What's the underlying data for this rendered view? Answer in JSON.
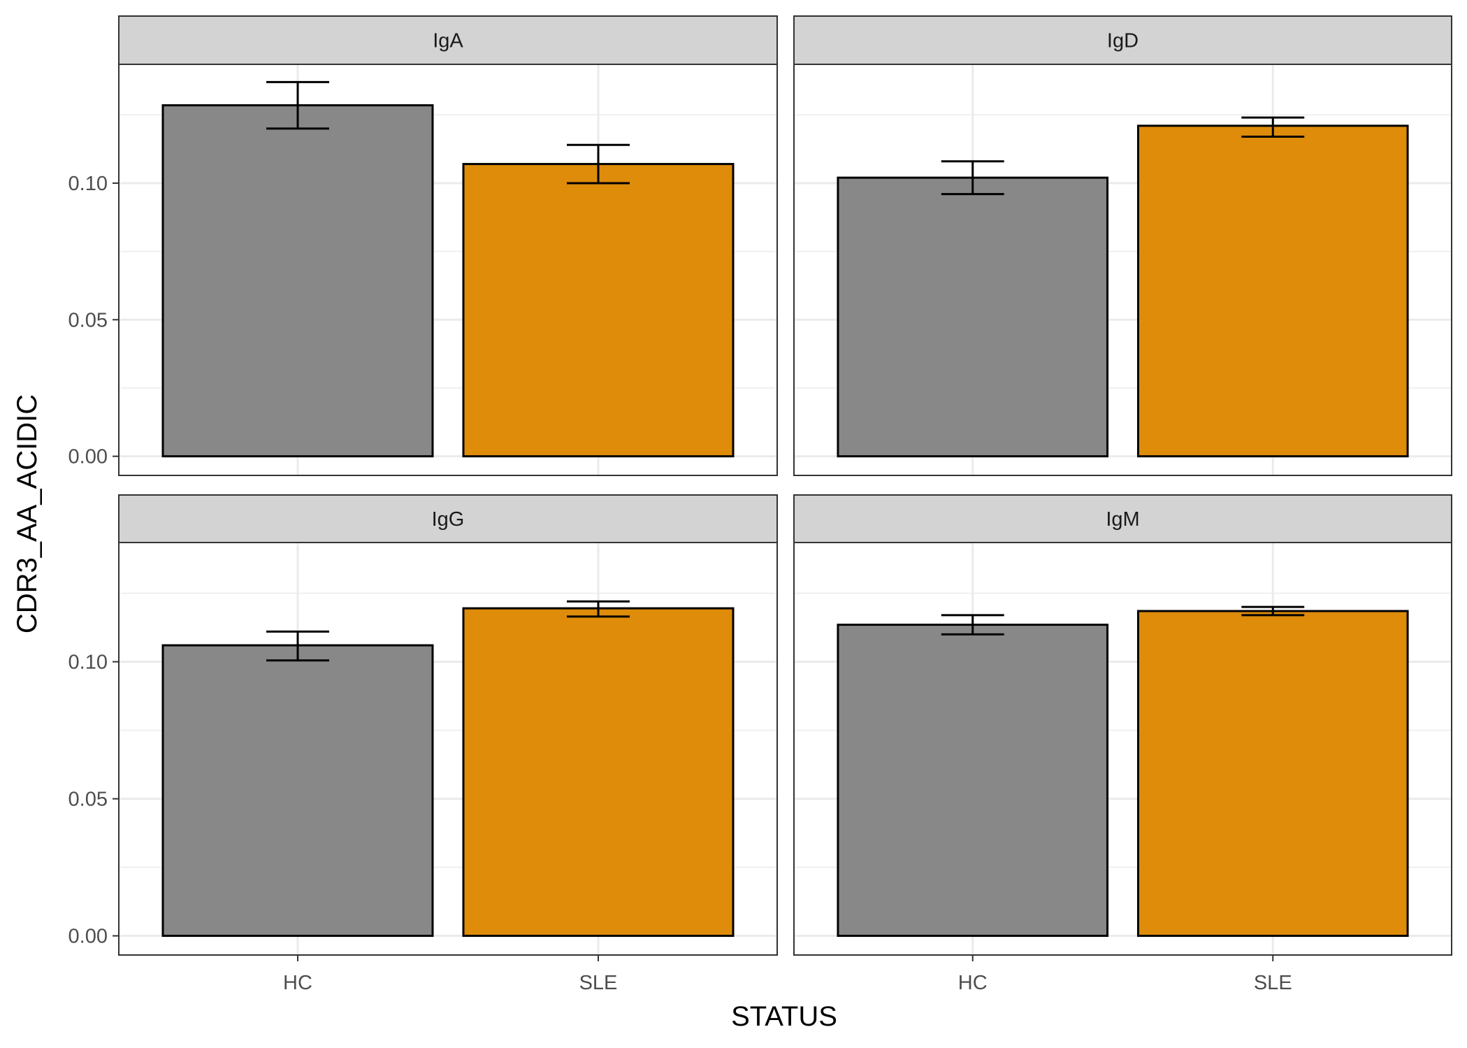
{
  "chart_data": {
    "type": "bar",
    "facet_layout": "2x2",
    "xlabel": "STATUS",
    "ylabel": "CDR3_AA_ACIDIC",
    "categories": [
      "HC",
      "SLE"
    ],
    "yticks": [
      0.0,
      0.05,
      0.1
    ],
    "ytick_labels": [
      "0.00",
      "0.05",
      "0.10"
    ],
    "ylim": [
      -0.007,
      0.1435
    ],
    "grid": true,
    "legend": "none",
    "colors": {
      "HC": "#888888",
      "SLE": "#DE8C0A",
      "strip_bg": "#D3D3D3",
      "grid": "#EBEBEB"
    },
    "panels": [
      {
        "label": "IgA",
        "values": [
          0.1285,
          0.107
        ],
        "err_low": [
          0.12,
          0.1
        ],
        "err_high": [
          0.137,
          0.114
        ]
      },
      {
        "label": "IgD",
        "values": [
          0.102,
          0.121
        ],
        "err_low": [
          0.096,
          0.117
        ],
        "err_high": [
          0.108,
          0.124
        ]
      },
      {
        "label": "IgG",
        "values": [
          0.106,
          0.1195
        ],
        "err_low": [
          0.1005,
          0.1165
        ],
        "err_high": [
          0.111,
          0.122
        ]
      },
      {
        "label": "IgM",
        "values": [
          0.1135,
          0.1185
        ],
        "err_low": [
          0.11,
          0.117
        ],
        "err_high": [
          0.117,
          0.12
        ]
      }
    ]
  }
}
